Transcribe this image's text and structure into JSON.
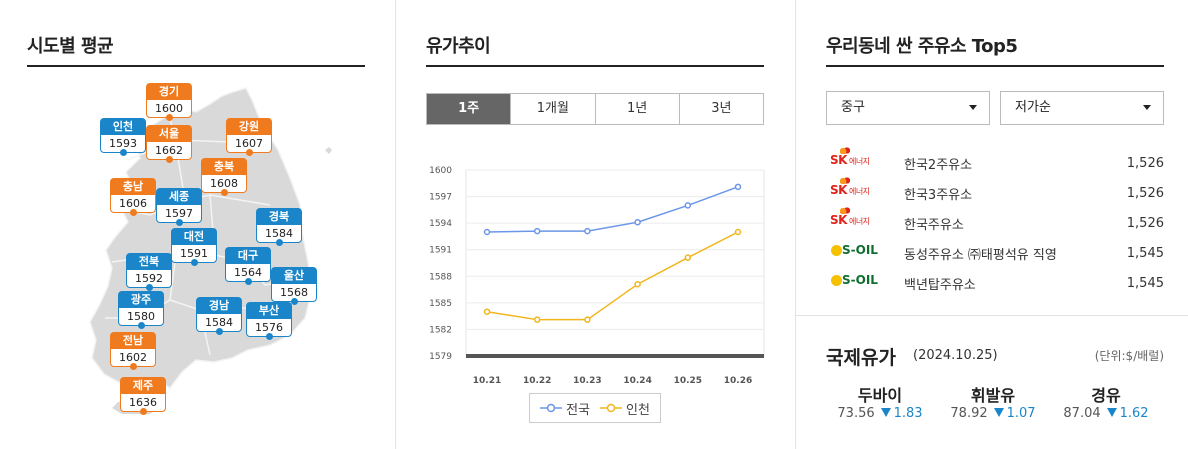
{
  "map_panel": {
    "title": "시도별 평균",
    "regions": [
      {
        "name": "경기",
        "price": "1600",
        "level": "high"
      },
      {
        "name": "인천",
        "price": "1593",
        "level": "low"
      },
      {
        "name": "서울",
        "price": "1662",
        "level": "high"
      },
      {
        "name": "강원",
        "price": "1607",
        "level": "high"
      },
      {
        "name": "충북",
        "price": "1608",
        "level": "high"
      },
      {
        "name": "충남",
        "price": "1606",
        "level": "high"
      },
      {
        "name": "세종",
        "price": "1597",
        "level": "low"
      },
      {
        "name": "경북",
        "price": "1584",
        "level": "low"
      },
      {
        "name": "대전",
        "price": "1591",
        "level": "low"
      },
      {
        "name": "전북",
        "price": "1592",
        "level": "low"
      },
      {
        "name": "대구",
        "price": "1564",
        "level": "low"
      },
      {
        "name": "울산",
        "price": "1568",
        "level": "low"
      },
      {
        "name": "광주",
        "price": "1580",
        "level": "low"
      },
      {
        "name": "경남",
        "price": "1584",
        "level": "low"
      },
      {
        "name": "부산",
        "price": "1576",
        "level": "low"
      },
      {
        "name": "전남",
        "price": "1602",
        "level": "high"
      },
      {
        "name": "제주",
        "price": "1636",
        "level": "high"
      }
    ],
    "colors": {
      "high": "#f07a1e",
      "low": "#1a86c9",
      "land": "#d8d8d8"
    }
  },
  "trend_panel": {
    "title": "유가추이",
    "tabs": [
      "1주",
      "1개월",
      "1년",
      "3년"
    ],
    "active_tab": "1주",
    "legend": [
      "전국",
      "인천"
    ]
  },
  "chart_data": {
    "type": "line",
    "x": [
      "10.21",
      "10.22",
      "10.23",
      "10.24",
      "10.25",
      "10.26"
    ],
    "series": [
      {
        "name": "전국",
        "values": [
          1593.0,
          1593.1,
          1593.1,
          1594.1,
          1596.0,
          1598.1
        ],
        "color": "#6b97e8"
      },
      {
        "name": "인천",
        "values": [
          1584.0,
          1583.1,
          1583.1,
          1587.1,
          1590.1,
          1593.0
        ],
        "color": "#f2b51b"
      }
    ],
    "yticks": [
      "1600",
      "1597",
      "1594",
      "1591",
      "1588",
      "1585",
      "1582",
      "1579"
    ],
    "ylim": [
      1579,
      1600
    ],
    "grid": true,
    "legend_position": "bottom"
  },
  "station_panel": {
    "title": "우리동네 싼 주유소 Top5",
    "district_select": "중구",
    "sort_select": "저가순",
    "stations": [
      {
        "brand": "sk-energy-logo",
        "brand_text": "SK",
        "brand_sub": "에너지",
        "name": "한국2주유소",
        "price": "1,526"
      },
      {
        "brand": "sk-energy-logo",
        "brand_text": "SK",
        "brand_sub": "에너지",
        "name": "한국3주유소",
        "price": "1,526"
      },
      {
        "brand": "sk-energy-logo",
        "brand_text": "SK",
        "brand_sub": "에너지",
        "name": "한국주유소",
        "price": "1,526"
      },
      {
        "brand": "s-oil-logo",
        "brand_text": "S-OIL",
        "brand_sub": "",
        "name": "동성주유소 ㈜태평석유 직영",
        "price": "1,545"
      },
      {
        "brand": "s-oil-logo",
        "brand_text": "S-OIL",
        "brand_sub": "",
        "name": "백년탑주유소",
        "price": "1,545"
      }
    ]
  },
  "international": {
    "title": "국제유가",
    "date": "(2024.10.25)",
    "unit": "(단위:$/배럴)",
    "oils": [
      {
        "name": "두바이",
        "price": "73.56",
        "change": "1.83"
      },
      {
        "name": "휘발유",
        "price": "78.92",
        "change": "1.07"
      },
      {
        "name": "경유",
        "price": "87.04",
        "change": "1.62"
      }
    ],
    "down_color": "#1a86c9"
  }
}
